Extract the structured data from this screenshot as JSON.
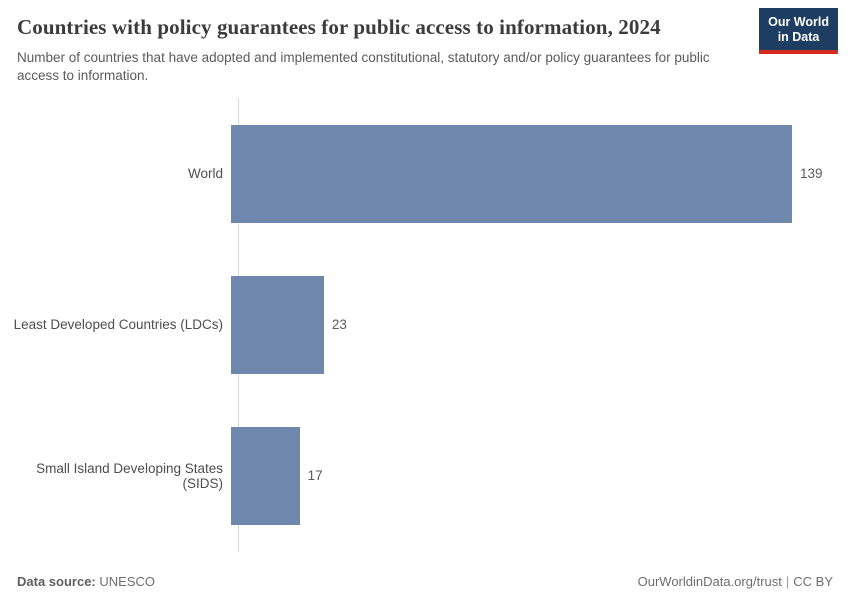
{
  "header": {
    "title": "Countries with policy guarantees for public access to information, 2024",
    "subtitle": "Number of countries that have adopted and implemented constitutional, statutory and/or policy guarantees for public access to information."
  },
  "logo": {
    "line1": "Our World",
    "line2": "in Data",
    "bg_color": "#1d3d63",
    "accent_color": "#d42b21"
  },
  "chart_data": {
    "type": "bar",
    "orientation": "horizontal",
    "title": "Countries with policy guarantees for public access to information, 2024",
    "categories": [
      "World",
      "Least Developed Countries (LDCs)",
      "Small Island Developing States (SIDS)"
    ],
    "values": [
      139,
      23,
      17
    ],
    "xlabel": "",
    "ylabel": "",
    "xlim": [
      0,
      139
    ],
    "bar_color": "#6f87ad",
    "axis_line_color": "#dbdbdb",
    "grid": false,
    "legend": false
  },
  "footer": {
    "source_label": "Data source:",
    "source_value": "UNESCO",
    "url_text": "OurWorldinData.org/trust",
    "separator": "|",
    "license_text": "CC BY"
  }
}
